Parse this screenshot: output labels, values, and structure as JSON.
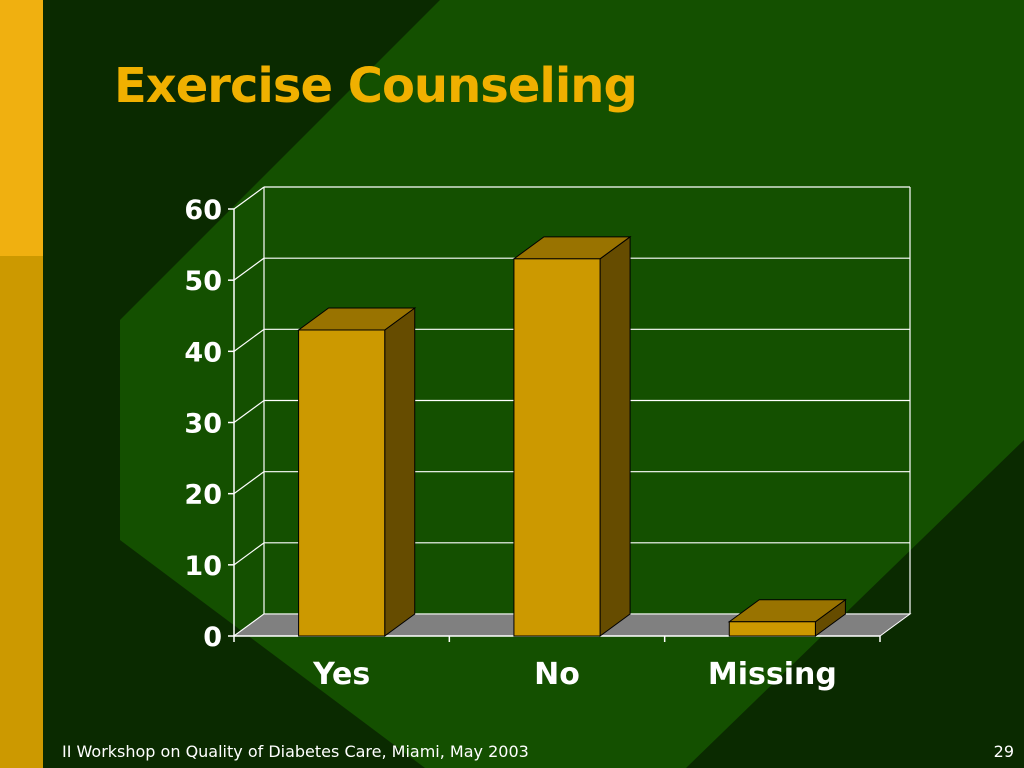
{
  "slide": {
    "title": "Exercise Counseling",
    "footer": "II Workshop on Quality of Diabetes Care, Miami, May 2003",
    "page_number": "29"
  },
  "colors": {
    "background": "#0a2a00",
    "diamond": "#145000",
    "accent": "#f0b010",
    "title": "#f0b000",
    "bar_front": "#cc9900",
    "bar_side": "#664c00",
    "bar_top": "#997300",
    "floor": "#808080"
  },
  "chart_data": {
    "type": "bar",
    "categories": [
      "Yes",
      "No",
      "Missing"
    ],
    "values": [
      43,
      53,
      2
    ],
    "title": "",
    "xlabel": "",
    "ylabel": "",
    "ylim": [
      0,
      60
    ],
    "yticks": [
      0,
      10,
      20,
      30,
      40,
      50,
      60
    ],
    "grid": true,
    "style": "3d"
  }
}
